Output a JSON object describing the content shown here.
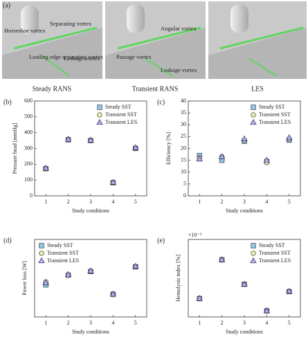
{
  "figure": {
    "panel_label": "(a)",
    "images": [
      {
        "caption": "Steady RANS",
        "annotations": [
          "Horseshoe vortex",
          "Separating vortex",
          "Leading edge separating vortex",
          "Leakage vortex"
        ]
      },
      {
        "caption": "Transient RANS",
        "annotations": [
          "Angular vortex",
          "Passage vortex",
          "Leakage vortex"
        ]
      },
      {
        "caption": "LES",
        "annotations": []
      }
    ]
  },
  "chart_data": [
    {
      "type": "scatter",
      "panel_label": "(b)",
      "y_label": "Pressure head [mmHg]",
      "x_label": "Study  conditions",
      "x": [
        1,
        2,
        3,
        4,
        5
      ],
      "xlim": [
        0.5,
        5.5
      ],
      "xticks": [
        1,
        2,
        3,
        4,
        5
      ],
      "ylim": [
        0,
        600
      ],
      "yticks": [
        0,
        100,
        200,
        300,
        400,
        500,
        600
      ],
      "grid": false,
      "legend": "upper right",
      "series": [
        {
          "name": "Steady SST",
          "color": "#8ec9ea",
          "marker": "square",
          "values": [
            172,
            355,
            350,
            83,
            300
          ]
        },
        {
          "name": "Transient SST",
          "color": "#eeeeb0",
          "marker": "circle",
          "values": [
            172,
            357,
            350,
            85,
            302
          ]
        },
        {
          "name": "Transient LES",
          "color": "#b4b4ea",
          "marker": "triangle",
          "values": [
            175,
            358,
            352,
            85,
            305
          ]
        }
      ]
    },
    {
      "type": "scatter",
      "panel_label": "(c)",
      "y_label": "Efficiency [%]",
      "x_label": "Study  conditions",
      "x": [
        1,
        2,
        3,
        4,
        5
      ],
      "xlim": [
        0.5,
        5.5
      ],
      "xticks": [
        1,
        2,
        3,
        4,
        5
      ],
      "ylim": [
        0,
        40
      ],
      "yticks": [
        0,
        5,
        10,
        15,
        20,
        25,
        30,
        35,
        40
      ],
      "grid": false,
      "legend": "upper right",
      "series": [
        {
          "name": "Steady SST",
          "color": "#8ec9ea",
          "marker": "square",
          "values": [
            17,
            15,
            23,
            14.5,
            23.5
          ]
        },
        {
          "name": "Transient SST",
          "color": "#eeeeb0",
          "marker": "circle",
          "values": [
            16,
            16.5,
            23.5,
            14,
            24
          ]
        },
        {
          "name": "Transient LES",
          "color": "#b4b4ea",
          "marker": "triangle",
          "values": [
            15.5,
            16.5,
            24,
            15,
            24.5
          ]
        }
      ]
    },
    {
      "type": "scatter",
      "panel_label": "(d)",
      "y_label": "Power loss [W]",
      "x_label": "Study  conditions",
      "x": [
        1,
        2,
        3,
        4,
        5
      ],
      "xlim": [
        0.5,
        5.5
      ],
      "xticks": [
        1,
        2,
        3,
        4,
        5
      ],
      "ylim": [
        0,
        15
      ],
      "grid": false,
      "legend": "upper left",
      "series": [
        {
          "name": "Steady SST",
          "color": "#8ec9ea",
          "marker": "square",
          "values": [
            6.2,
            8.1,
            8.8,
            4.4,
            9.7
          ]
        },
        {
          "name": "Transient SST",
          "color": "#eeeeb0",
          "marker": "circle",
          "values": [
            6.8,
            8.0,
            8.8,
            4.3,
            9.7
          ]
        },
        {
          "name": "Transient LES",
          "color": "#b4b4ea",
          "marker": "triangle",
          "values": [
            6.6,
            8.2,
            8.9,
            4.4,
            9.8
          ]
        }
      ]
    },
    {
      "type": "scatter",
      "panel_label": "(e)",
      "y_label": "Hemolysis index [%]",
      "y_scale_label": "×10⁻³",
      "x_label": "Study  conditions",
      "x": [
        1,
        2,
        3,
        4,
        5
      ],
      "xlim": [
        0.5,
        5.5
      ],
      "xticks": [
        1,
        2,
        3,
        4,
        5
      ],
      "ylim": [
        0.3,
        2.2
      ],
      "grid": false,
      "legend": "upper right",
      "series": [
        {
          "name": "Steady SST",
          "color": "#8ec9ea",
          "marker": "square",
          "values": [
            0.75,
            1.7,
            1.1,
            0.45,
            0.92
          ]
        },
        {
          "name": "Transient SST",
          "color": "#eeeeb0",
          "marker": "circle",
          "values": [
            0.76,
            1.71,
            1.1,
            0.44,
            0.92
          ]
        },
        {
          "name": "Transient LES",
          "color": "#b4b4ea",
          "marker": "triangle",
          "values": [
            0.75,
            1.7,
            1.1,
            0.45,
            0.93
          ]
        }
      ]
    }
  ]
}
